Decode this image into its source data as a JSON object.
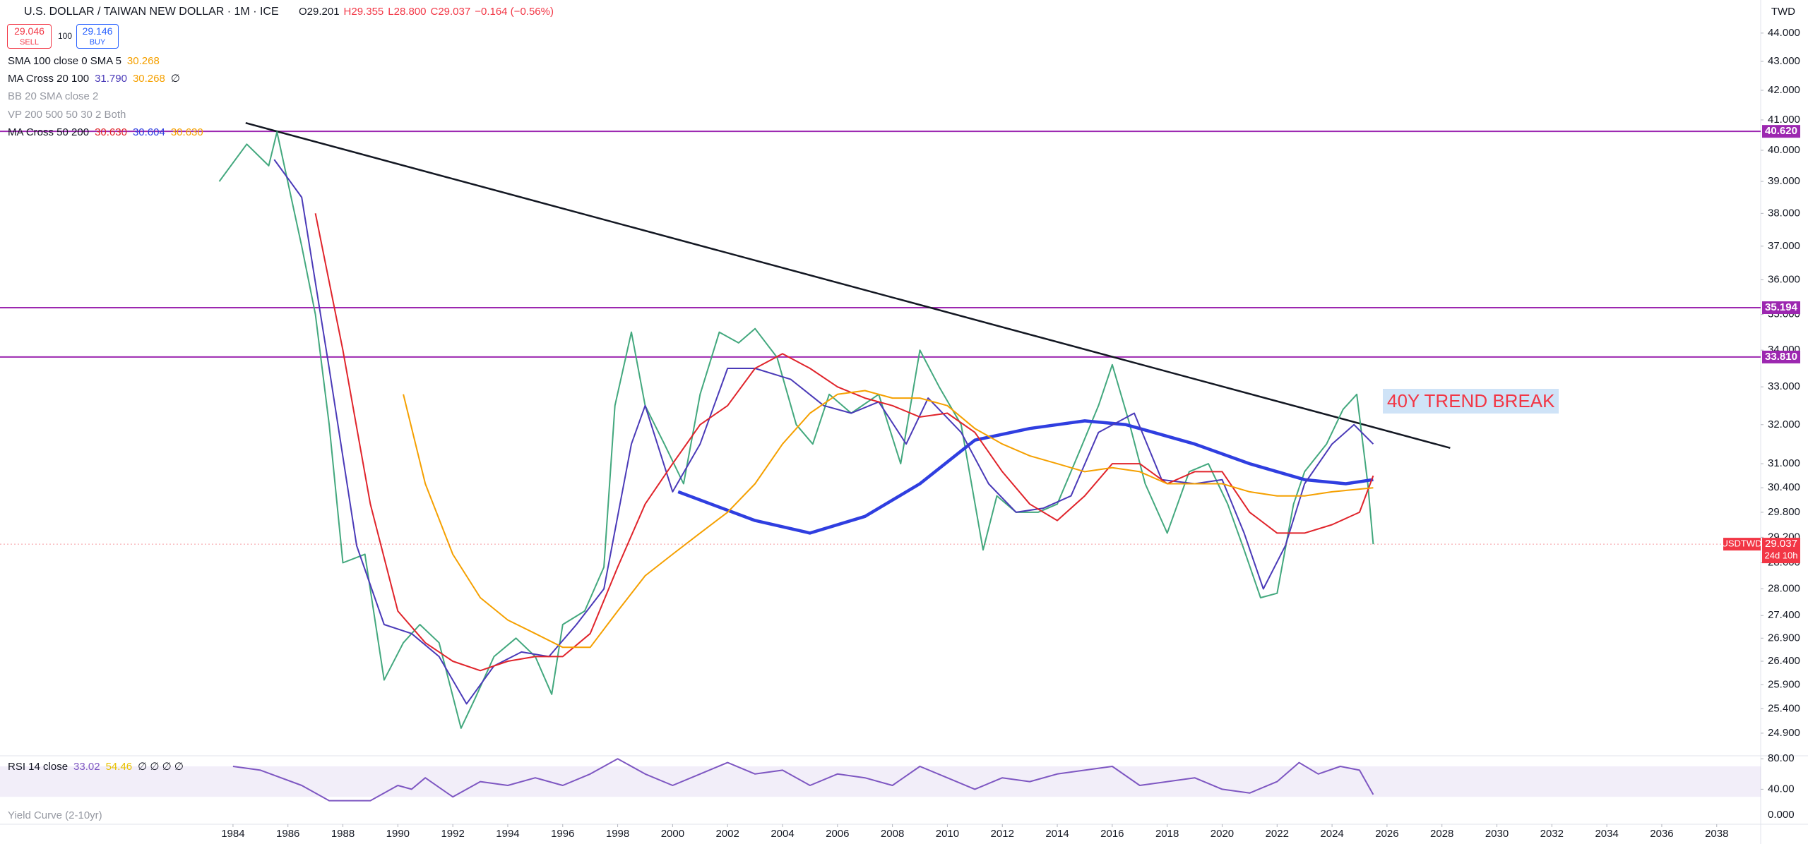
{
  "header": {
    "title": "U.S. DOLLAR / TAIWAN NEW DOLLAR · 1M · ICE",
    "ohlc": [
      "O29.201",
      "H29.355",
      "L28.800",
      "C29.037",
      "−0.164 (−0.56%)"
    ],
    "sell": {
      "price": "29.046",
      "label": "SELL"
    },
    "qty": "100",
    "buy": {
      "price": "29.146",
      "label": "BUY"
    },
    "currency": "TWD"
  },
  "legend": [
    {
      "label": "SMA 100 close 0 SMA 5",
      "values": [
        "30.268"
      ],
      "colors": [
        "#f5a000"
      ]
    },
    {
      "label": "MA Cross 20 100",
      "values": [
        "31.790",
        "30.268",
        "∅"
      ],
      "colors": [
        "#4a3ab8",
        "#f5a000",
        "#131722"
      ]
    },
    {
      "label": "BB 20 SMA close 2",
      "values": [],
      "colors": []
    },
    {
      "label": "VP 200 500 50 30 2 Both",
      "values": [],
      "colors": []
    },
    {
      "label": "MA Cross 50 200",
      "values": [
        "30.630",
        "30.604",
        "30.630"
      ],
      "colors": [
        "#e0242b",
        "#2f3ee0",
        "#f5a000"
      ]
    }
  ],
  "rsi_legend": {
    "label": "RSI 14 close",
    "values": [
      "33.02",
      "54.46",
      "∅ ∅ ∅ ∅"
    ],
    "colors": [
      "#7e57c2",
      "#e8c100",
      "#131722"
    ]
  },
  "yield_curve": {
    "label": "Yield Curve (2-10yr)",
    "tick": "0.000"
  },
  "chart_data": {
    "type": "line",
    "log": true,
    "grid": false,
    "annotation": "40Y TREND BREAK",
    "xlim": [
      1975.52,
      2039.6
    ],
    "xticks": [
      1984,
      1986,
      1988,
      1990,
      1992,
      1994,
      1996,
      1998,
      2000,
      2002,
      2004,
      2006,
      2008,
      2010,
      2012,
      2014,
      2016,
      2018,
      2020,
      2022,
      2024,
      2026,
      2028,
      2030,
      2032,
      2034,
      2036,
      2038
    ],
    "ylim": [
      24.46,
      45.2
    ],
    "yticks": [
      {
        "value": 44,
        "label": "44.000"
      },
      {
        "value": 43,
        "label": "43.000"
      },
      {
        "value": 42,
        "label": "42.000"
      },
      {
        "value": 41,
        "label": "41.000"
      },
      {
        "value": 40,
        "label": "40.000"
      },
      {
        "value": 39,
        "label": "39.000"
      },
      {
        "value": 38,
        "label": "38.000"
      },
      {
        "value": 37,
        "label": "37.000"
      },
      {
        "value": 36,
        "label": "36.000"
      },
      {
        "value": 35,
        "label": "35.000"
      },
      {
        "value": 34,
        "label": "34.000"
      },
      {
        "value": 33,
        "label": "33.000"
      },
      {
        "value": 32,
        "label": "32.000"
      },
      {
        "value": 31,
        "label": "31.000"
      },
      {
        "value": 30.4,
        "label": "30.400"
      },
      {
        "value": 29.8,
        "label": "29.800"
      },
      {
        "value": 29.2,
        "label": "29.200"
      },
      {
        "value": 28.6,
        "label": "28.600"
      },
      {
        "value": 28,
        "label": "28.000"
      },
      {
        "value": 27.4,
        "label": "27.400"
      },
      {
        "value": 26.9,
        "label": "26.900"
      },
      {
        "value": 26.4,
        "label": "26.400"
      },
      {
        "value": 25.9,
        "label": "25.900"
      },
      {
        "value": 25.4,
        "label": "25.400"
      },
      {
        "value": 24.9,
        "label": "24.900"
      }
    ],
    "levels": [
      {
        "value": 40.62,
        "label": "40.620"
      },
      {
        "value": 35.194,
        "label": "35.194"
      },
      {
        "value": 33.81,
        "label": "33.810"
      }
    ],
    "level_color": "#9c27b0",
    "last": {
      "name": "USDTWD",
      "value": 29.037,
      "label": "29.037",
      "countdown": "24d 10h",
      "color": "#f23645"
    },
    "trendline": {
      "x": [
        1984.46,
        2028.3
      ],
      "values": [
        40.9,
        31.4
      ],
      "color": "#131722"
    },
    "series": [
      {
        "name": "USDTWD",
        "color": "#43a87e",
        "width": 2,
        "x": [
          1983.5,
          1984.5,
          1985.3,
          1985.6,
          1986.5,
          1987.0,
          1987.5,
          1988.0,
          1988.8,
          1989.5,
          1990.2,
          1990.8,
          1991.5,
          1992.3,
          1992.8,
          1993.5,
          1994.3,
          1995.0,
          1995.6,
          1996.0,
          1996.8,
          1997.5,
          1997.9,
          1998.5,
          1999.0,
          1999.7,
          2000.4,
          2001.0,
          2001.7,
          2002.4,
          2003.0,
          2003.8,
          2004.5,
          2005.1,
          2005.7,
          2006.5,
          2007.5,
          2008.3,
          2009.0,
          2009.7,
          2010.5,
          2011.3,
          2011.8,
          2012.5,
          2013.3,
          2014.0,
          2014.8,
          2015.5,
          2016.0,
          2016.6,
          2017.2,
          2018.0,
          2018.8,
          2019.5,
          2020.2,
          2020.8,
          2021.4,
          2022.0,
          2022.6,
          2023.0,
          2023.8,
          2024.4,
          2024.9,
          2025.3,
          2025.5
        ],
        "values": [
          39.0,
          40.2,
          39.5,
          40.6,
          37.0,
          35.0,
          32.0,
          28.6,
          28.8,
          26.0,
          26.8,
          27.2,
          26.8,
          25.0,
          25.6,
          26.5,
          26.9,
          26.5,
          25.7,
          27.2,
          27.5,
          28.5,
          32.5,
          34.5,
          32.5,
          31.5,
          30.5,
          32.8,
          34.5,
          34.2,
          34.6,
          33.8,
          32.0,
          31.5,
          32.8,
          32.3,
          32.8,
          31.0,
          34.0,
          33.0,
          32.0,
          28.9,
          30.2,
          29.8,
          29.8,
          30.0,
          31.3,
          32.5,
          33.6,
          32.1,
          30.5,
          29.3,
          30.8,
          31.0,
          30.0,
          28.9,
          27.8,
          27.9,
          30.0,
          30.8,
          31.5,
          32.4,
          32.8,
          30.5,
          29.037
        ]
      },
      {
        "color": "#2f3ee0",
        "width": 4.5,
        "x": [
          2000.2,
          2003,
          2005,
          2007,
          2009,
          2011,
          2013,
          2015,
          2016.5,
          2017.5,
          2019,
          2021,
          2023,
          2024.5,
          2025.5
        ],
        "values": [
          30.3,
          29.6,
          29.3,
          29.7,
          30.5,
          31.6,
          31.9,
          32.1,
          32.0,
          31.8,
          31.5,
          31.0,
          30.6,
          30.5,
          30.6
        ]
      },
      {
        "color": "#4a3ab8",
        "width": 2,
        "x": [
          1985.5,
          1986.5,
          1987.5,
          1988.5,
          1989.5,
          1990.5,
          1991.5,
          1992.5,
          1993.5,
          1994.5,
          1995.5,
          1996.5,
          1997.5,
          1998.5,
          1999,
          2000,
          2001,
          2002,
          2003,
          2004.3,
          2005.5,
          2006.5,
          2007.5,
          2008.5,
          2009.3,
          2010.5,
          2011.5,
          2012.5,
          2013.5,
          2014.5,
          2015.5,
          2016.8,
          2017.8,
          2019,
          2020,
          2020.8,
          2021.5,
          2022.3,
          2023,
          2024,
          2024.8,
          2025.5
        ],
        "values": [
          39.7,
          38.5,
          33.5,
          29.0,
          27.2,
          27.0,
          26.5,
          25.5,
          26.3,
          26.6,
          26.5,
          27.2,
          28.0,
          31.5,
          32.5,
          30.3,
          31.5,
          33.5,
          33.5,
          33.2,
          32.5,
          32.3,
          32.6,
          31.5,
          32.7,
          31.8,
          30.5,
          29.8,
          29.9,
          30.2,
          31.8,
          32.3,
          30.6,
          30.5,
          30.6,
          29.3,
          28.0,
          29.0,
          30.5,
          31.5,
          32.0,
          31.5
        ]
      },
      {
        "color": "#e0242b",
        "width": 2,
        "x": [
          1987,
          1988,
          1989,
          1990,
          1991,
          1992,
          1993,
          1994,
          1995,
          1996,
          1997,
          1998,
          1999,
          2000,
          2001,
          2002,
          2003,
          2004,
          2005,
          2006,
          2007,
          2008,
          2009,
          2010,
          2011,
          2012,
          2013,
          2014,
          2015,
          2016,
          2017,
          2018,
          2019,
          2020,
          2021,
          2022,
          2023,
          2024,
          2025,
          2025.5
        ],
        "values": [
          38.0,
          34.0,
          30.0,
          27.5,
          26.8,
          26.4,
          26.2,
          26.4,
          26.5,
          26.5,
          27.0,
          28.5,
          30.0,
          31.0,
          32.0,
          32.5,
          33.5,
          33.9,
          33.5,
          33.0,
          32.7,
          32.5,
          32.2,
          32.3,
          31.8,
          30.8,
          30.0,
          29.6,
          30.2,
          31.0,
          31.0,
          30.5,
          30.8,
          30.8,
          29.8,
          29.3,
          29.3,
          29.5,
          29.8,
          30.7
        ]
      },
      {
        "color": "#f5a000",
        "width": 2,
        "x": [
          1990.2,
          1991,
          1992,
          1993,
          1994,
          1995,
          1996,
          1997,
          1998,
          1999,
          2000,
          2001,
          2002,
          2003,
          2004,
          2005,
          2006,
          2007,
          2008,
          2009,
          2010,
          2011,
          2012,
          2013,
          2014,
          2015,
          2016,
          2017,
          2018,
          2019,
          2020,
          2021,
          2022,
          2023,
          2024,
          2025.5
        ],
        "values": [
          32.8,
          30.5,
          28.8,
          27.8,
          27.3,
          27.0,
          26.7,
          26.7,
          27.5,
          28.3,
          28.8,
          29.3,
          29.8,
          30.5,
          31.5,
          32.3,
          32.8,
          32.9,
          32.7,
          32.7,
          32.5,
          31.9,
          31.5,
          31.2,
          31.0,
          30.8,
          30.9,
          30.8,
          30.5,
          30.5,
          30.5,
          30.3,
          30.2,
          30.2,
          30.3,
          30.4
        ]
      }
    ],
    "rsi": {
      "ylim": [
        -6,
        83
      ],
      "band": [
        30,
        70
      ],
      "yticks": [
        {
          "value": 80,
          "label": "80.00"
        },
        {
          "value": 40,
          "label": "40.00"
        }
      ],
      "color": "#7e57c2",
      "x": [
        1984,
        1985,
        1986.5,
        1987.5,
        1989,
        1990,
        1990.5,
        1991,
        1992,
        1993,
        1994,
        1995,
        1996,
        1997,
        1998,
        1999,
        2000,
        2001,
        2002,
        2003,
        2004,
        2005,
        2006,
        2007,
        2008,
        2009,
        2010,
        2011,
        2012,
        2013,
        2014,
        2015,
        2016,
        2017,
        2018,
        2019,
        2020,
        2021,
        2022,
        2022.8,
        2023.5,
        2024.3,
        2025,
        2025.5
      ],
      "values": [
        70,
        65,
        45,
        25,
        25,
        45,
        40,
        55,
        30,
        50,
        45,
        55,
        45,
        60,
        80,
        60,
        45,
        60,
        75,
        60,
        65,
        45,
        60,
        55,
        45,
        70,
        55,
        40,
        55,
        50,
        60,
        65,
        70,
        45,
        50,
        55,
        40,
        35,
        50,
        75,
        60,
        70,
        65,
        33.02
      ]
    }
  }
}
